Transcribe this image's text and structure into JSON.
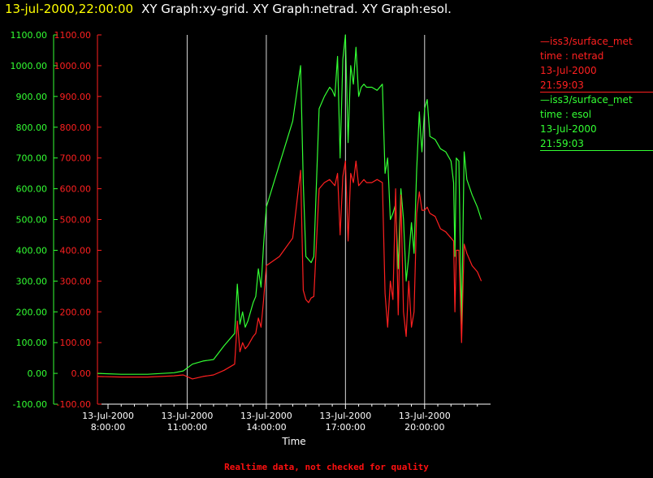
{
  "header": {
    "timestamp": "13-jul-2000,22:00:00",
    "title": "XY Graph:xy-grid.  XY Graph:netrad.  XY Graph:esol."
  },
  "legend": [
    {
      "source": "iss3/surface_met",
      "variable": "time : netrad",
      "date": "13-Jul-2000",
      "time": "21:59:03",
      "color": "#ff2020"
    },
    {
      "source": "iss3/surface_met",
      "variable": "time : esol",
      "date": "13-Jul-2000",
      "time": "21:59:03",
      "color": "#33ff33"
    }
  ],
  "footer": {
    "text": "Realtime data, not checked for quality",
    "color": "#ff1010"
  },
  "chart_data": {
    "type": "line",
    "xlabel": "Time",
    "xlim_hours": [
      7.6,
      22.5
    ],
    "ylim": [
      -100,
      1100
    ],
    "yticks": [
      -100,
      0,
      100,
      200,
      300,
      400,
      500,
      600,
      700,
      800,
      900,
      1000,
      1100
    ],
    "ytick_labels": [
      "-100.00",
      "0.00",
      "100.00",
      "200.00",
      "300.00",
      "400.00",
      "500.00",
      "600.00",
      "700.00",
      "800.00",
      "900.00",
      "1000.00",
      "1100.00"
    ],
    "xticks": [
      {
        "hour": 8,
        "date": "13-Jul-2000",
        "time": "8:00:00"
      },
      {
        "hour": 11,
        "date": "13-Jul-2000",
        "time": "11:00:00"
      },
      {
        "hour": 14,
        "date": "13-Jul-2000",
        "time": "14:00:00"
      },
      {
        "hour": 17,
        "date": "13-Jul-2000",
        "time": "17:00:00"
      },
      {
        "hour": 20,
        "date": "13-Jul-2000",
        "time": "20:00:00"
      }
    ],
    "grid_vertical_hours": [
      11,
      14,
      17,
      20
    ],
    "left_axis_color": "#33ff33",
    "right_axis_color": "#ff2020",
    "series": [
      {
        "name": "time : esol",
        "color": "#33ff33",
        "x": [
          7.6,
          8.5,
          9.5,
          10.5,
          10.85,
          11.2,
          11.6,
          12.0,
          12.4,
          12.8,
          12.9,
          13.0,
          13.1,
          13.2,
          13.3,
          13.5,
          13.6,
          13.7,
          13.8,
          13.9,
          14.0,
          14.5,
          15.0,
          15.3,
          15.4,
          15.5,
          15.6,
          15.7,
          15.8,
          16.0,
          16.2,
          16.4,
          16.5,
          16.6,
          16.7,
          16.8,
          16.9,
          17.0,
          17.1,
          17.2,
          17.3,
          17.4,
          17.5,
          17.6,
          17.7,
          17.8,
          18.0,
          18.2,
          18.4,
          18.5,
          18.6,
          18.7,
          18.8,
          18.9,
          19.0,
          19.1,
          19.2,
          19.3,
          19.4,
          19.5,
          19.6,
          19.7,
          19.8,
          19.85,
          19.9,
          20.0,
          20.1,
          20.2,
          20.4,
          20.6,
          20.8,
          21.0,
          21.1,
          21.15,
          21.2,
          21.3,
          21.4,
          21.5,
          21.6,
          21.8,
          22.0,
          22.15
        ],
        "y": [
          0,
          -3,
          -3,
          2,
          8,
          30,
          40,
          45,
          90,
          130,
          290,
          160,
          200,
          150,
          170,
          230,
          250,
          340,
          280,
          420,
          540,
          680,
          820,
          1000,
          620,
          380,
          370,
          360,
          380,
          860,
          900,
          930,
          920,
          900,
          1030,
          700,
          1020,
          1100,
          750,
          1000,
          940,
          1060,
          900,
          930,
          940,
          930,
          930,
          920,
          940,
          650,
          700,
          500,
          520,
          550,
          340,
          600,
          500,
          300,
          380,
          490,
          390,
          660,
          850,
          780,
          720,
          860,
          890,
          770,
          760,
          730,
          720,
          690,
          620,
          380,
          700,
          690,
          150,
          720,
          630,
          580,
          540,
          500
        ]
      },
      {
        "name": "time : netrad",
        "color": "#ff2020",
        "x": [
          7.6,
          8.5,
          9.5,
          10.5,
          10.85,
          11.2,
          11.6,
          12.0,
          12.4,
          12.8,
          12.9,
          13.0,
          13.1,
          13.2,
          13.3,
          13.5,
          13.6,
          13.7,
          13.8,
          13.9,
          14.0,
          14.5,
          15.0,
          15.3,
          15.4,
          15.5,
          15.6,
          15.7,
          15.8,
          16.0,
          16.2,
          16.4,
          16.5,
          16.6,
          16.7,
          16.8,
          16.9,
          17.0,
          17.1,
          17.2,
          17.3,
          17.4,
          17.5,
          17.6,
          17.7,
          17.8,
          18.0,
          18.2,
          18.4,
          18.5,
          18.6,
          18.7,
          18.8,
          18.9,
          19.0,
          19.1,
          19.2,
          19.3,
          19.4,
          19.5,
          19.6,
          19.7,
          19.8,
          19.85,
          19.9,
          20.0,
          20.1,
          20.2,
          20.4,
          20.6,
          20.8,
          21.0,
          21.1,
          21.15,
          21.2,
          21.3,
          21.4,
          21.5,
          21.6,
          21.8,
          22.0,
          22.15
        ],
        "y": [
          -10,
          -12,
          -12,
          -8,
          -5,
          -18,
          -10,
          -5,
          10,
          30,
          170,
          70,
          100,
          80,
          90,
          120,
          130,
          180,
          150,
          240,
          350,
          380,
          440,
          660,
          270,
          240,
          230,
          245,
          250,
          600,
          620,
          630,
          620,
          610,
          650,
          450,
          640,
          690,
          430,
          650,
          620,
          690,
          610,
          620,
          630,
          620,
          620,
          630,
          620,
          260,
          150,
          300,
          240,
          600,
          190,
          580,
          200,
          120,
          300,
          150,
          200,
          520,
          590,
          560,
          530,
          530,
          540,
          520,
          510,
          470,
          460,
          440,
          430,
          200,
          400,
          400,
          100,
          420,
          390,
          350,
          330,
          300
        ]
      }
    ]
  }
}
